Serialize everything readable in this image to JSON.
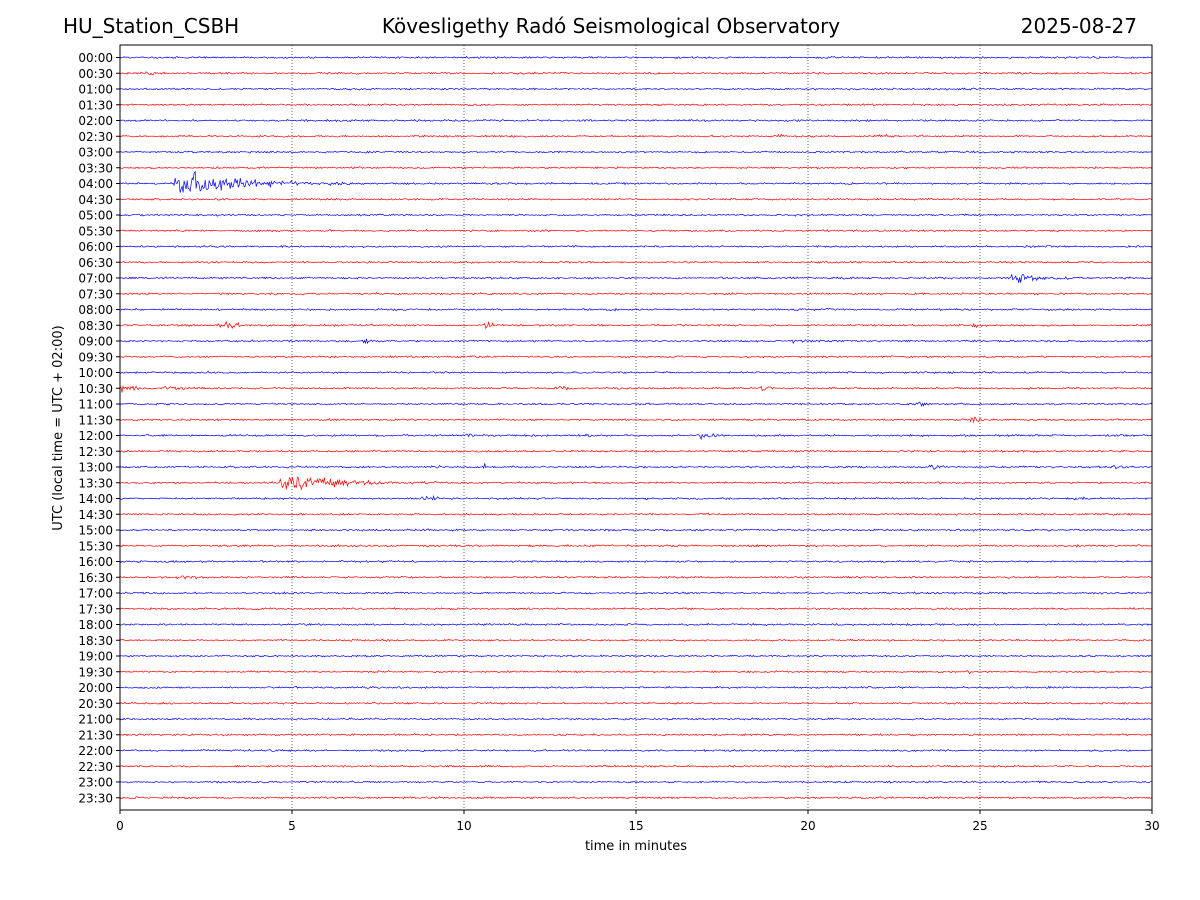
{
  "header": {
    "station": "HU_Station_CSBH",
    "observatory": "Kövesligethy Radó Seismological Observatory",
    "date": "2025-08-27"
  },
  "chart_data": {
    "type": "line",
    "title": "Kövesligethy Radó Seismological Observatory",
    "xlabel": "time in minutes",
    "ylabel": "UTC (local time = UTC + 02:00)",
    "xlim": [
      0,
      30
    ],
    "x_ticks": [
      0,
      5,
      10,
      15,
      20,
      25,
      30
    ],
    "x_tick_labels": [
      "0",
      "5",
      "10",
      "15",
      "20",
      "25",
      "30"
    ],
    "vertical_grid": true,
    "row_labels": [
      "00:00",
      "00:30",
      "01:00",
      "01:30",
      "02:00",
      "02:30",
      "03:00",
      "03:30",
      "04:00",
      "04:30",
      "05:00",
      "05:30",
      "06:00",
      "06:30",
      "07:00",
      "07:30",
      "08:00",
      "08:30",
      "09:00",
      "09:30",
      "10:00",
      "10:30",
      "11:00",
      "11:30",
      "12:00",
      "12:30",
      "13:00",
      "13:30",
      "14:00",
      "14:30",
      "15:00",
      "15:30",
      "16:00",
      "16:30",
      "17:00",
      "17:30",
      "18:00",
      "18:30",
      "19:00",
      "19:30",
      "20:00",
      "20:30",
      "21:00",
      "21:30",
      "22:00",
      "22:30",
      "23:00",
      "23:30"
    ],
    "row_colors": [
      "#0000ff",
      "#ff0000"
    ],
    "background_noise_amplitude": 0.7,
    "events": [
      {
        "row": "00:00",
        "start": 23.8,
        "end": 24.0,
        "amplitude": 1.6
      },
      {
        "row": "00:30",
        "start": 0.5,
        "end": 1.5,
        "amplitude": 1.6
      },
      {
        "row": "00:30",
        "start": 12.0,
        "end": 12.2,
        "amplitude": 1.3
      },
      {
        "row": "01:30",
        "start": 28.2,
        "end": 28.8,
        "amplitude": 1.6
      },
      {
        "row": "02:30",
        "start": 19.0,
        "end": 20.5,
        "amplitude": 1.8
      },
      {
        "row": "02:30",
        "start": 22.0,
        "end": 23.2,
        "amplitude": 2.4
      },
      {
        "row": "02:30",
        "start": 23.2,
        "end": 24.5,
        "amplitude": 1.3
      },
      {
        "row": "04:00",
        "start": 1.55,
        "end": 6.8,
        "amplitude": 11.0
      },
      {
        "row": "07:00",
        "start": 20.8,
        "end": 21.6,
        "amplitude": 1.8
      },
      {
        "row": "07:00",
        "start": 25.9,
        "end": 27.6,
        "amplitude": 7.0
      },
      {
        "row": "08:00",
        "start": 13.8,
        "end": 14.6,
        "amplitude": 1.8
      },
      {
        "row": "08:00",
        "start": 20.5,
        "end": 21.8,
        "amplitude": 1.6
      },
      {
        "row": "08:30",
        "start": 2.7,
        "end": 3.6,
        "amplitude": 4.0
      },
      {
        "row": "08:30",
        "start": 10.5,
        "end": 10.9,
        "amplitude": 3.2
      },
      {
        "row": "08:30",
        "start": 24.6,
        "end": 25.2,
        "amplitude": 1.6
      },
      {
        "row": "09:00",
        "start": 7.0,
        "end": 7.3,
        "amplitude": 3.2
      },
      {
        "row": "09:00",
        "start": 19.5,
        "end": 22.0,
        "amplitude": 1.8
      },
      {
        "row": "10:30",
        "start": 0.0,
        "end": 1.2,
        "amplitude": 4.5
      },
      {
        "row": "10:30",
        "start": 1.2,
        "end": 5.0,
        "amplitude": 1.8
      },
      {
        "row": "10:30",
        "start": 12.5,
        "end": 13.2,
        "amplitude": 1.8
      },
      {
        "row": "10:30",
        "start": 18.4,
        "end": 19.1,
        "amplitude": 2.4
      },
      {
        "row": "11:00",
        "start": 23.1,
        "end": 23.5,
        "amplitude": 2.4
      },
      {
        "row": "11:30",
        "start": 24.5,
        "end": 25.4,
        "amplitude": 2.4
      },
      {
        "row": "12:00",
        "start": 10.0,
        "end": 11.5,
        "amplitude": 2.0
      },
      {
        "row": "12:00",
        "start": 13.5,
        "end": 14.8,
        "amplitude": 2.0
      },
      {
        "row": "12:00",
        "start": 16.8,
        "end": 18.4,
        "amplitude": 3.5
      },
      {
        "row": "13:00",
        "start": 9.0,
        "end": 9.4,
        "amplitude": 2.0
      },
      {
        "row": "13:00",
        "start": 10.5,
        "end": 10.7,
        "amplitude": 2.5
      },
      {
        "row": "13:00",
        "start": 23.5,
        "end": 25.0,
        "amplitude": 2.8
      },
      {
        "row": "13:00",
        "start": 28.5,
        "end": 29.5,
        "amplitude": 1.6
      },
      {
        "row": "13:30",
        "start": 4.6,
        "end": 9.2,
        "amplitude": 8.0
      },
      {
        "row": "14:00",
        "start": 8.5,
        "end": 9.5,
        "amplitude": 2.0
      },
      {
        "row": "14:00",
        "start": 27.6,
        "end": 28.2,
        "amplitude": 1.6
      },
      {
        "row": "14:30",
        "start": 17.0,
        "end": 17.2,
        "amplitude": 1.6
      },
      {
        "row": "16:30",
        "start": 1.6,
        "end": 3.2,
        "amplitude": 3.0
      },
      {
        "row": "19:30",
        "start": 24.5,
        "end": 24.8,
        "amplitude": 1.6
      }
    ]
  }
}
